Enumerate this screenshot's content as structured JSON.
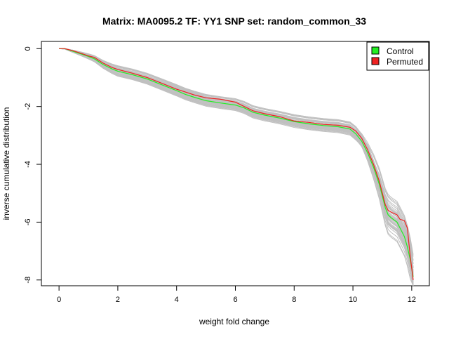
{
  "chart_data": {
    "type": "line",
    "title": "Matrix: MA0095.2 TF: YY1 SNP set: random_common_33",
    "xlabel": "weight fold change",
    "ylabel": "inverse cumulative distribution",
    "xlim": [
      -0.6,
      12.6
    ],
    "ylim": [
      -8.2,
      0.25
    ],
    "x_ticks": [
      0,
      2,
      4,
      6,
      8,
      10,
      12
    ],
    "y_ticks": [
      0,
      -2,
      -4,
      -6,
      -8
    ],
    "grid": false,
    "legend_position": "top-right",
    "legend": [
      {
        "label": "Control",
        "color": "#22ee22"
      },
      {
        "label": "Permuted",
        "color": "#ee2222"
      }
    ],
    "series": [
      {
        "name": "Permuted",
        "color": "#ee2222",
        "x": [
          0.0,
          0.2,
          0.5,
          0.8,
          1.0,
          1.2,
          1.5,
          1.8,
          2.0,
          2.5,
          3.0,
          3.5,
          4.0,
          4.3,
          4.6,
          5.0,
          5.5,
          6.0,
          6.3,
          6.6,
          7.0,
          7.5,
          8.0,
          8.5,
          9.0,
          9.5,
          9.9,
          10.1,
          10.3,
          10.5,
          10.7,
          10.9,
          11.0,
          11.1,
          11.2,
          11.3,
          11.5,
          11.6,
          11.75,
          11.85,
          11.95,
          12.05
        ],
        "y": [
          0.0,
          0.0,
          -0.08,
          -0.18,
          -0.25,
          -0.3,
          -0.5,
          -0.65,
          -0.72,
          -0.85,
          -1.0,
          -1.2,
          -1.4,
          -1.5,
          -1.6,
          -1.7,
          -1.75,
          -1.85,
          -2.0,
          -2.15,
          -2.25,
          -2.35,
          -2.5,
          -2.55,
          -2.62,
          -2.65,
          -2.72,
          -2.85,
          -3.1,
          -3.5,
          -4.0,
          -4.6,
          -5.0,
          -5.4,
          -5.6,
          -5.65,
          -5.75,
          -5.9,
          -5.95,
          -6.2,
          -7.2,
          -8.0
        ]
      },
      {
        "name": "Control",
        "color": "#22ee22",
        "x": [
          0.0,
          0.2,
          0.5,
          0.8,
          1.0,
          1.2,
          1.5,
          1.8,
          2.0,
          2.5,
          3.0,
          3.5,
          4.0,
          4.3,
          4.6,
          5.0,
          5.5,
          6.0,
          6.3,
          6.6,
          7.0,
          7.5,
          8.0,
          8.5,
          9.0,
          9.5,
          9.9,
          10.1,
          10.3,
          10.5,
          10.7,
          10.9,
          11.0,
          11.1,
          11.2,
          11.3,
          11.5,
          11.6,
          11.75,
          11.85,
          11.95,
          12.05
        ],
        "y": [
          0.0,
          0.0,
          -0.1,
          -0.2,
          -0.27,
          -0.35,
          -0.55,
          -0.7,
          -0.78,
          -0.9,
          -1.05,
          -1.25,
          -1.45,
          -1.58,
          -1.68,
          -1.8,
          -1.88,
          -1.95,
          -2.05,
          -2.2,
          -2.3,
          -2.4,
          -2.52,
          -2.6,
          -2.66,
          -2.7,
          -2.78,
          -2.95,
          -3.2,
          -3.6,
          -4.1,
          -4.7,
          -5.1,
          -5.5,
          -5.75,
          -5.85,
          -6.0,
          -6.2,
          -6.5,
          -6.85,
          -7.3,
          -7.9
        ]
      }
    ],
    "background_series": {
      "color": "#c0c0c0",
      "count": 40,
      "note_x": [
        0.0,
        0.2,
        0.5,
        0.8,
        1.0,
        1.2,
        1.5,
        1.8,
        2.0,
        2.5,
        3.0,
        3.5,
        4.0,
        4.3,
        4.6,
        5.0,
        5.5,
        6.0,
        6.3,
        6.6,
        7.0,
        7.5,
        8.0,
        8.5,
        9.0,
        9.5,
        9.9,
        10.1,
        10.3,
        10.5,
        10.7,
        10.9,
        11.0,
        11.1,
        11.2,
        11.3,
        11.5,
        11.6,
        11.75,
        11.85,
        11.95,
        12.05
      ]
    }
  }
}
